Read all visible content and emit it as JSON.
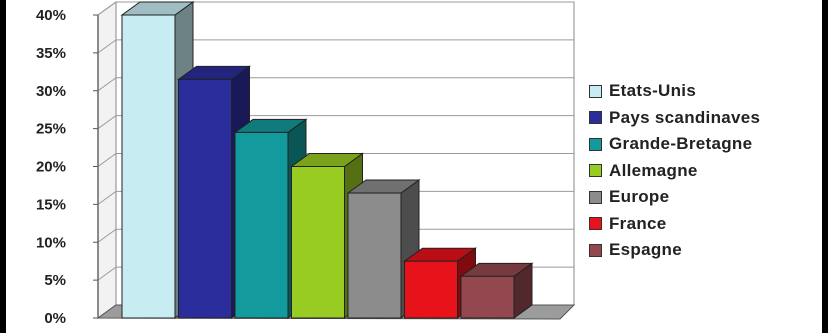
{
  "chart_data": {
    "type": "bar",
    "title": "",
    "xlabel": "",
    "ylabel": "",
    "ylim": [
      0,
      40
    ],
    "y_ticks": [
      "0%",
      "5%",
      "10%",
      "15%",
      "20%",
      "25%",
      "30%",
      "35%",
      "40%"
    ],
    "grid": true,
    "three_d": true,
    "legend_position": "right",
    "categories": [
      "Etats-Unis",
      "Pays scandinaves",
      "Grande-Bretagne",
      "Allemagne",
      "Europe",
      "France",
      "Espagne"
    ],
    "values": [
      40,
      31.5,
      24.5,
      20,
      16.5,
      7.5,
      5.5
    ],
    "colors": [
      "#c7ecf2",
      "#2b2d9c",
      "#139a9c",
      "#98cc22",
      "#8c8c8c",
      "#e8121a",
      "#93484f"
    ]
  }
}
